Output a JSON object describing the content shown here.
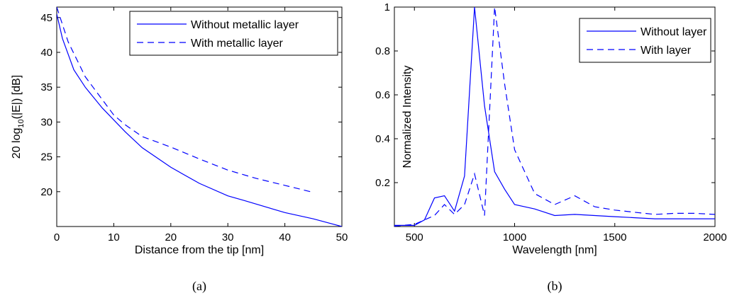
{
  "colors": {
    "series": "#0000ff",
    "axes": "#000000",
    "background": "#ffffff"
  },
  "chart_data": [
    {
      "type": "line",
      "caption": "(a)",
      "xlabel": "Distance from the tip [nm]",
      "ylabel_parts": {
        "main": "20 log",
        "sub": "10",
        "rest": "(|E|) [dB]"
      },
      "xlim": [
        0,
        50
      ],
      "ylim": [
        15,
        46.5
      ],
      "xticks": [
        0,
        10,
        20,
        30,
        40,
        50
      ],
      "yticks": [
        20,
        25,
        30,
        35,
        40,
        45
      ],
      "grid": false,
      "legend_position": "top-right",
      "series": [
        {
          "name": "Without metallic layer",
          "style": "solid",
          "x": [
            0,
            1,
            3,
            5,
            8,
            10,
            12,
            15,
            20,
            25,
            30,
            33,
            40,
            45,
            50
          ],
          "y": [
            45.5,
            42,
            37.5,
            35,
            32,
            30.3,
            28.6,
            26.3,
            23.5,
            21.2,
            19.4,
            18.7,
            17.0,
            16.1,
            15.0
          ]
        },
        {
          "name": "With metallic layer",
          "style": "dashed",
          "x": [
            0,
            2,
            5,
            8,
            10,
            12,
            15,
            20,
            25,
            30,
            35,
            40,
            45
          ],
          "y": [
            46.5,
            41.5,
            36.5,
            33.2,
            31,
            29.6,
            27.9,
            26.4,
            24.7,
            23.1,
            21.9,
            20.9,
            19.9
          ]
        }
      ]
    },
    {
      "type": "line",
      "caption": "(b)",
      "xlabel": "Wavelength [nm]",
      "ylabel": "Normalized Intensity",
      "xlim": [
        400,
        2000
      ],
      "ylim": [
        0,
        1
      ],
      "xticks": [
        500,
        1000,
        1500,
        2000
      ],
      "yticks": [
        0.2,
        0.4,
        0.6,
        0.8,
        1
      ],
      "ytick_labels": [
        "0.2",
        "0.4",
        "0.6",
        "0.8",
        "1"
      ],
      "grid": false,
      "legend_position": "top-right",
      "series": [
        {
          "name": "Without layer",
          "style": "solid",
          "x": [
            400,
            500,
            550,
            600,
            650,
            700,
            750,
            800,
            850,
            900,
            950,
            1000,
            1100,
            1200,
            1300,
            1400,
            1500,
            1600,
            1700,
            1800,
            1900,
            2000
          ],
          "y": [
            0.005,
            0.005,
            0.03,
            0.13,
            0.14,
            0.07,
            0.23,
            1.0,
            0.55,
            0.25,
            0.17,
            0.1,
            0.08,
            0.05,
            0.055,
            0.05,
            0.045,
            0.04,
            0.035,
            0.035,
            0.035,
            0.035
          ]
        },
        {
          "name": "With layer",
          "style": "dashed",
          "x": [
            400,
            500,
            600,
            650,
            700,
            750,
            800,
            850,
            900,
            950,
            1000,
            1100,
            1200,
            1300,
            1400,
            1500,
            1600,
            1700,
            1800,
            1900,
            2000
          ],
          "y": [
            0.002,
            0.01,
            0.05,
            0.1,
            0.055,
            0.1,
            0.24,
            0.05,
            1.0,
            0.65,
            0.35,
            0.15,
            0.1,
            0.14,
            0.09,
            0.075,
            0.065,
            0.055,
            0.06,
            0.06,
            0.055
          ]
        }
      ]
    }
  ]
}
